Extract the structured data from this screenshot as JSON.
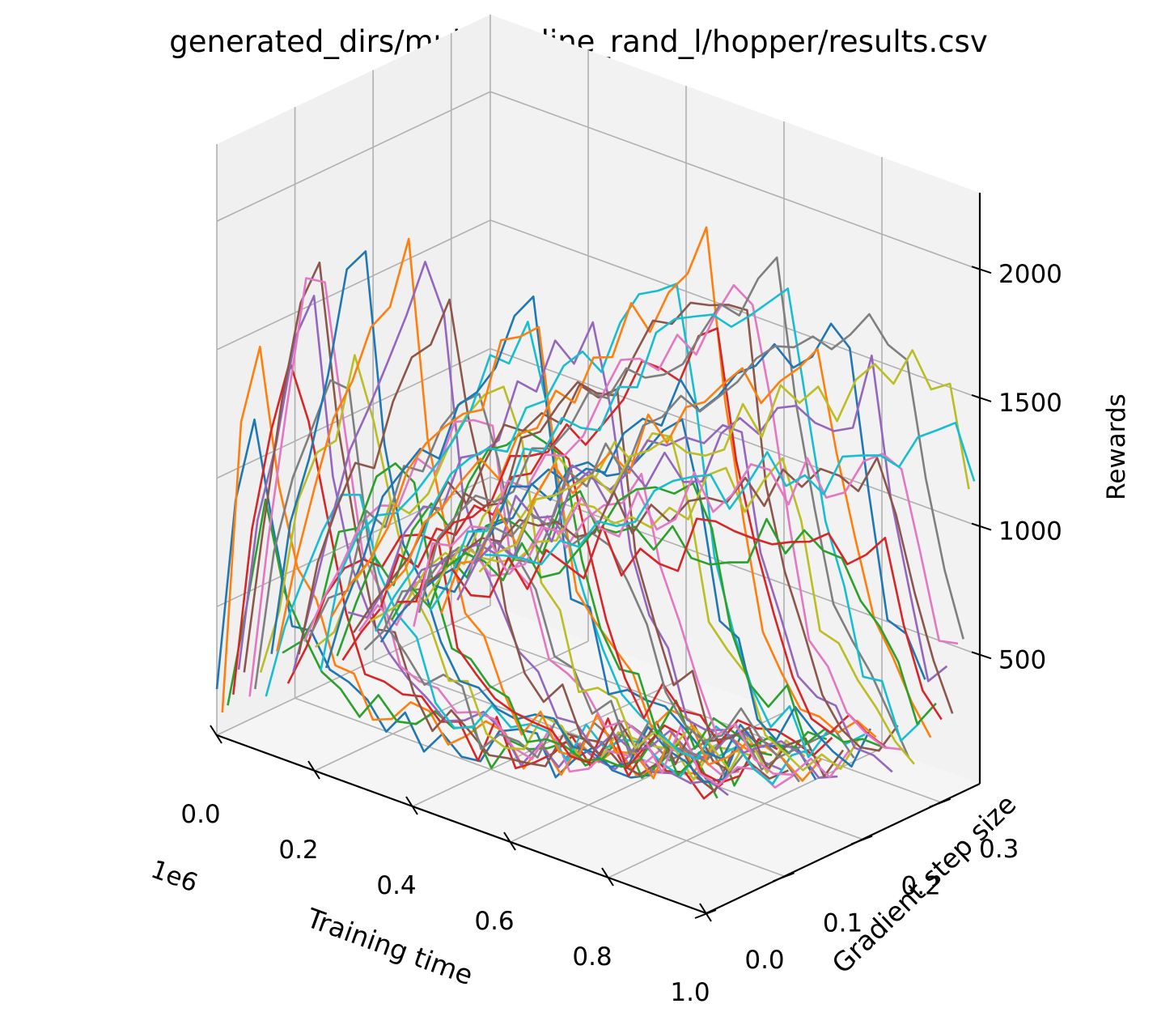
{
  "chart_data": {
    "type": "line",
    "title": "generated_dirs/muj_sac_line_rand_l/hopper/results.csv",
    "xlabel": "Training time",
    "ylabel": "Gradient step size",
    "zlabel": "Rewards",
    "x_offset_label": "1e6",
    "xlim": [
      0,
      1.0
    ],
    "ylim": [
      0,
      0.35
    ],
    "zlim": [
      0,
      2300
    ],
    "x_ticks": [
      "0.0",
      "0.2",
      "0.4",
      "0.6",
      "0.8",
      "1.0"
    ],
    "y_ticks": [
      "0.0",
      "0.1",
      "0.2",
      "0.3"
    ],
    "z_ticks": [
      "500",
      "1000",
      "1500",
      "2000"
    ],
    "grid": true,
    "legend": "none",
    "series_count": 50,
    "peak_time_range": [
      0.05,
      0.95
    ],
    "colors": [
      "#1f77b4",
      "#ff7f0e",
      "#2ca02c",
      "#d62728",
      "#9467bd",
      "#8c564b",
      "#e377c2",
      "#7f7f7f",
      "#bcbd22",
      "#17becf"
    ]
  }
}
